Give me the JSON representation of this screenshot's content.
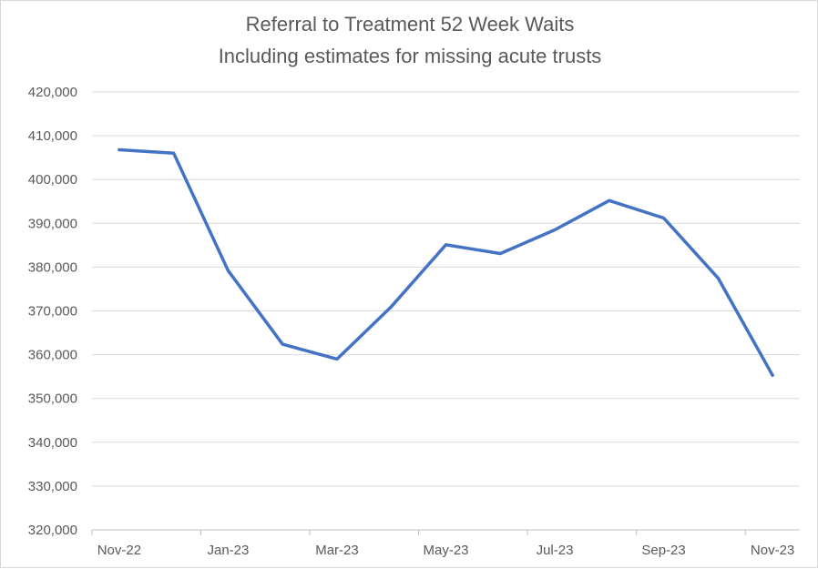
{
  "chart_data": {
    "type": "line",
    "title": [
      "Referral to Treatment 52 Week Waits",
      "Including estimates for missing acute trusts"
    ],
    "xlabel": "",
    "ylabel": "",
    "categories": [
      "Nov-22",
      "Dec-22",
      "Jan-23",
      "Feb-23",
      "Mar-23",
      "Apr-23",
      "May-23",
      "Jun-23",
      "Jul-23",
      "Aug-23",
      "Sep-23",
      "Oct-23",
      "Nov-23"
    ],
    "x_tick_labels": [
      "Nov-22",
      "Jan-23",
      "Mar-23",
      "May-23",
      "Jul-23",
      "Sep-23",
      "Nov-23"
    ],
    "series": [
      {
        "values": [
          406800,
          406000,
          379200,
          362400,
          359000,
          371000,
          385100,
          383100,
          388500,
          395200,
          391200,
          377500,
          355300
        ],
        "color": "#4472c4"
      }
    ],
    "ylim": [
      320000,
      420000
    ],
    "y_ticks": [
      420000,
      410000,
      400000,
      390000,
      380000,
      370000,
      360000,
      350000,
      340000,
      330000,
      320000
    ],
    "y_tick_labels": [
      "420,000",
      "410,000",
      "400,000",
      "390,000",
      "380,000",
      "370,000",
      "360,000",
      "350,000",
      "340,000",
      "330,000",
      "320,000"
    ],
    "grid": true,
    "legend": "none",
    "colors": {
      "line": "#4472c4",
      "grid": "#d9d9d9",
      "text": "#595959"
    }
  }
}
